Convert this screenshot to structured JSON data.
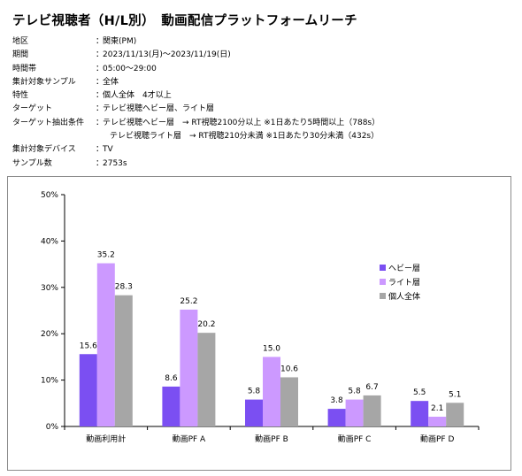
{
  "title": "テレビ視聴者（H/L別）　動画配信プラットフォームリーチ",
  "meta": [
    {
      "label": "地区",
      "value": "関東(PM)"
    },
    {
      "label": "期間",
      "value": "2023/11/13(月)〜2023/11/19(日)"
    },
    {
      "label": "時間帯",
      "value": "05:00〜29:00"
    },
    {
      "label": "集計対象サンプル",
      "value": "全体"
    },
    {
      "label": "特性",
      "value": "個人全体　4才以上"
    },
    {
      "label": "ターゲット",
      "value": "テレビ視聴ヘビー層、ライト層"
    },
    {
      "label": "ターゲット抽出条件",
      "value": "テレビ視聴ヘビー層　→ RT視聴2100分以上 ※1日あたり5時間以上（788s）"
    },
    {
      "label": "",
      "value": "テレビ視聴ライト層　→ RT視聴210分未満 ※1日あたり30分未満（432s）",
      "cont": true
    },
    {
      "label": "集計対象デバイス",
      "value": "TV"
    },
    {
      "label": "サンプル数",
      "value": "2753s"
    }
  ],
  "chart_data": {
    "type": "bar",
    "categories": [
      "動画利用計",
      "動画PF A",
      "動画PF B",
      "動画PF C",
      "動画PF D"
    ],
    "series": [
      {
        "name": "ヘビー層",
        "color": "#7b4ff2",
        "values": [
          15.6,
          8.6,
          5.8,
          3.8,
          5.5
        ]
      },
      {
        "name": "ライト層",
        "color": "#cc99ff",
        "values": [
          35.2,
          25.2,
          15.0,
          5.8,
          2.1
        ]
      },
      {
        "name": "個人全体",
        "color": "#a6a6a6",
        "values": [
          28.3,
          20.2,
          10.6,
          6.7,
          5.1
        ]
      }
    ],
    "ylim": [
      0,
      50
    ],
    "yticks": [
      0,
      10,
      20,
      30,
      40,
      50
    ],
    "ytick_labels": [
      "0%",
      "10%",
      "20%",
      "30%",
      "40%",
      "50%"
    ],
    "grid": false,
    "legend": "right"
  }
}
